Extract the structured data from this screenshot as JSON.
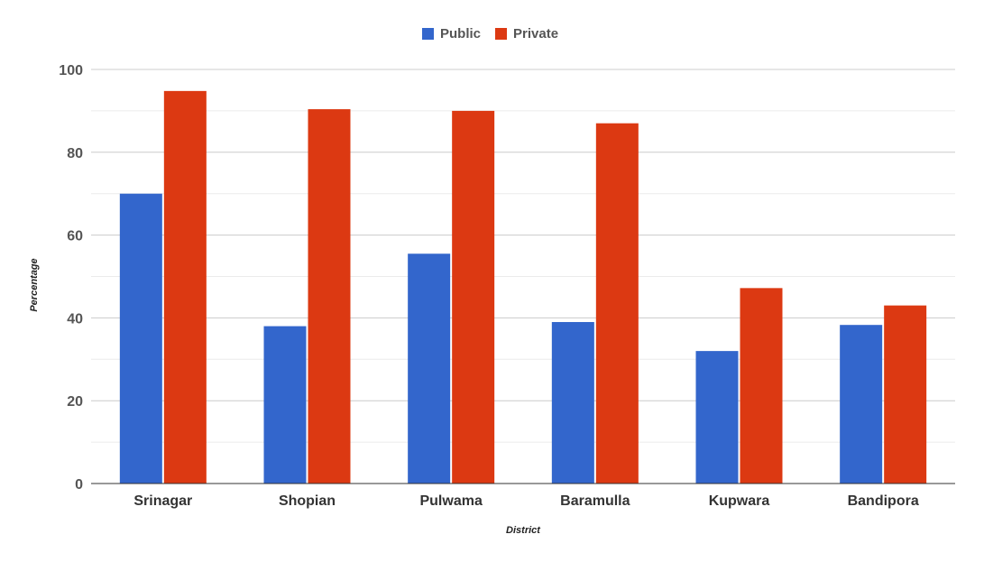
{
  "chart_data": {
    "type": "bar",
    "categories": [
      "Srinagar",
      "Shopian",
      "Pulwama",
      "Baramulla",
      "Kupwara",
      "Bandipora"
    ],
    "series": [
      {
        "name": "Public",
        "color": "#3366cc",
        "values": [
          70,
          38,
          55.5,
          39,
          32,
          38.3
        ]
      },
      {
        "name": "Private",
        "color": "#dc3912",
        "values": [
          94.8,
          90.4,
          90,
          87,
          47.2,
          43
        ]
      }
    ],
    "xlabel": "District",
    "ylabel": "Percentage",
    "ylim": [
      0,
      100
    ],
    "yticks": [
      0,
      20,
      40,
      60,
      80,
      100
    ],
    "grid": true,
    "legend_position": "top"
  }
}
